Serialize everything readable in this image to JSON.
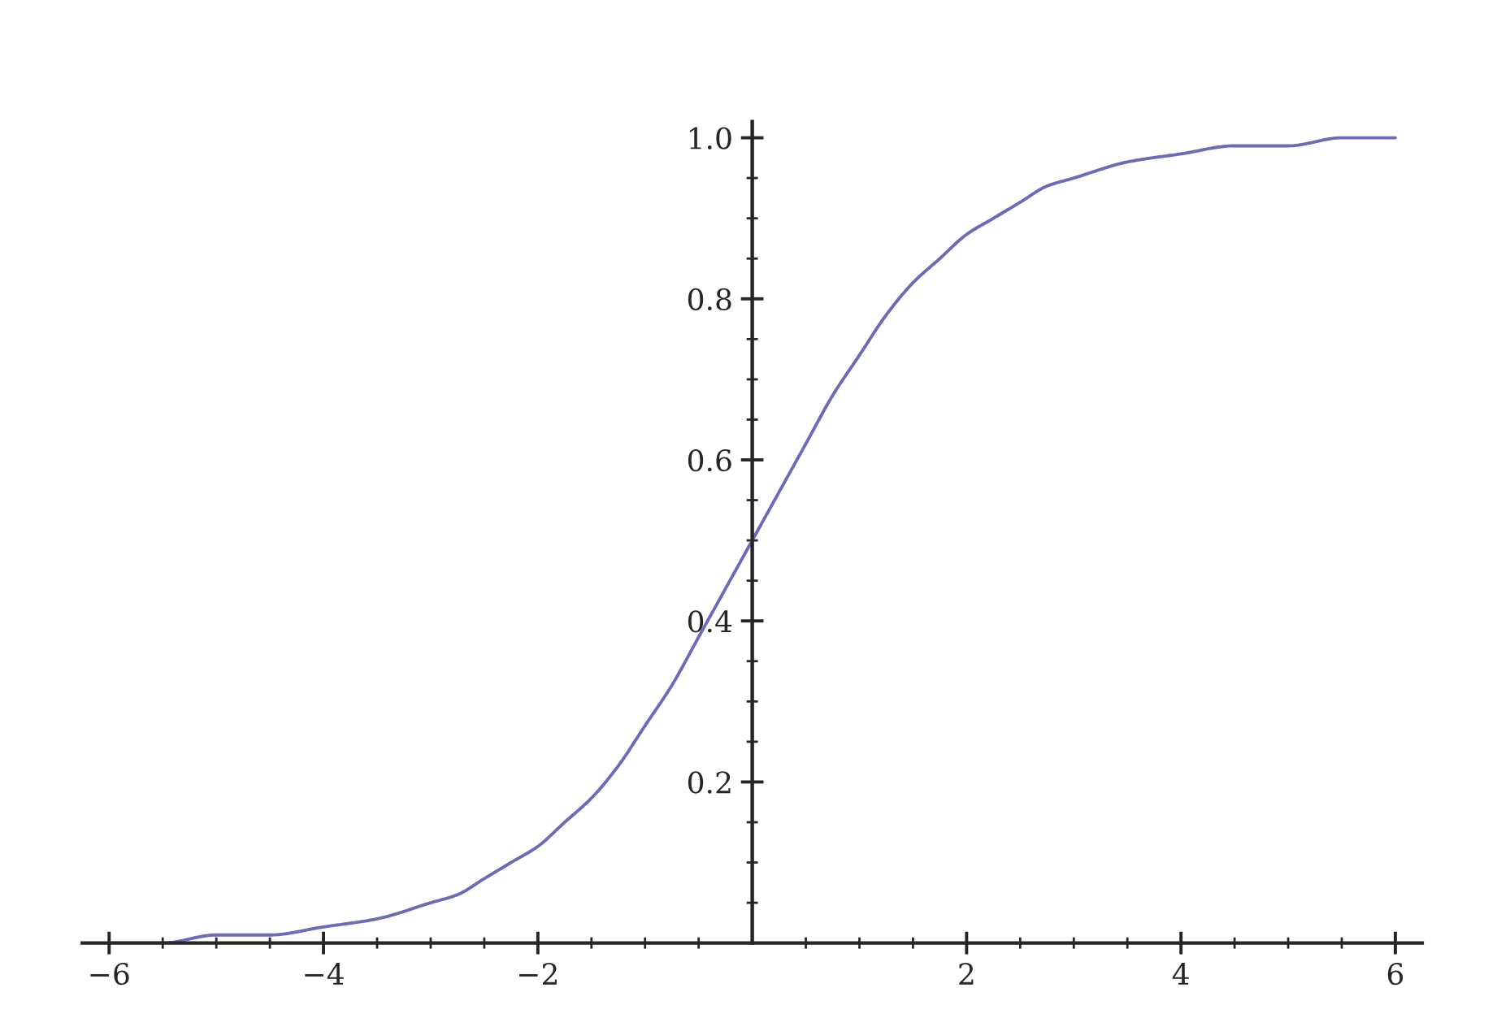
{
  "chart_data": {
    "type": "line",
    "x": [
      -6,
      -5.5,
      -5,
      -4.5,
      -4,
      -3.5,
      -3,
      -2.75,
      -2.5,
      -2.25,
      -2,
      -1.75,
      -1.5,
      -1.25,
      -1,
      -0.75,
      -0.5,
      -0.25,
      0,
      0.25,
      0.5,
      0.75,
      1,
      1.25,
      1.5,
      1.75,
      2,
      2.25,
      2.5,
      2.75,
      3,
      3.5,
      4,
      4.5,
      5,
      5.5,
      6
    ],
    "series": [
      {
        "color": "#6b6bb8",
        "values": [
          0.0,
          0.0,
          0.01,
          0.01,
          0.02,
          0.03,
          0.05,
          0.06,
          0.08,
          0.1,
          0.12,
          0.15,
          0.18,
          0.22,
          0.27,
          0.32,
          0.38,
          0.44,
          0.5,
          0.56,
          0.62,
          0.68,
          0.73,
          0.78,
          0.82,
          0.85,
          0.88,
          0.9,
          0.92,
          0.94,
          0.95,
          0.97,
          0.98,
          0.99,
          0.99,
          1.0,
          1.0
        ]
      }
    ],
    "xlim": [
      -6.25,
      6.25
    ],
    "ylim": [
      0,
      1.02
    ],
    "xticks": [
      {
        "value": -6,
        "label": "−6"
      },
      {
        "value": -5.5,
        "label": null
      },
      {
        "value": -5,
        "label": null
      },
      {
        "value": -4.5,
        "label": null
      },
      {
        "value": -4,
        "label": "−4"
      },
      {
        "value": -3.5,
        "label": null
      },
      {
        "value": -3,
        "label": null
      },
      {
        "value": -2.5,
        "label": null
      },
      {
        "value": -2,
        "label": "−2"
      },
      {
        "value": -1.5,
        "label": null
      },
      {
        "value": -1,
        "label": null
      },
      {
        "value": -0.5,
        "label": null
      },
      {
        "value": 0.5,
        "label": null
      },
      {
        "value": 1,
        "label": null
      },
      {
        "value": 1.5,
        "label": null
      },
      2,
      {
        "value": 2.5,
        "label": null
      },
      {
        "value": 3,
        "label": null
      },
      {
        "value": 3.5,
        "label": null
      },
      4,
      {
        "value": 4.5,
        "label": null
      },
      {
        "value": 5,
        "label": null
      },
      {
        "value": 5.5,
        "label": null
      },
      6
    ],
    "yticks": [
      {
        "value": 0.05,
        "label": null
      },
      {
        "value": 0.1,
        "label": null
      },
      {
        "value": 0.15,
        "label": null
      },
      0.2,
      {
        "value": 0.25,
        "label": null
      },
      {
        "value": 0.3,
        "label": null
      },
      {
        "value": 0.35,
        "label": null
      },
      0.4,
      {
        "value": 0.45,
        "label": null
      },
      {
        "value": 0.5,
        "label": null
      },
      {
        "value": 0.55,
        "label": null
      },
      0.6,
      {
        "value": 0.65,
        "label": null
      },
      {
        "value": 0.7,
        "label": null
      },
      {
        "value": 0.75,
        "label": null
      },
      0.8,
      {
        "value": 0.85,
        "label": null
      },
      {
        "value": 0.9,
        "label": null
      },
      {
        "value": 0.95,
        "label": null
      },
      {
        "value": 1.0,
        "label": "1.0"
      }
    ],
    "grid": false,
    "legend": false,
    "marker": "none",
    "line_style": "solid"
  }
}
